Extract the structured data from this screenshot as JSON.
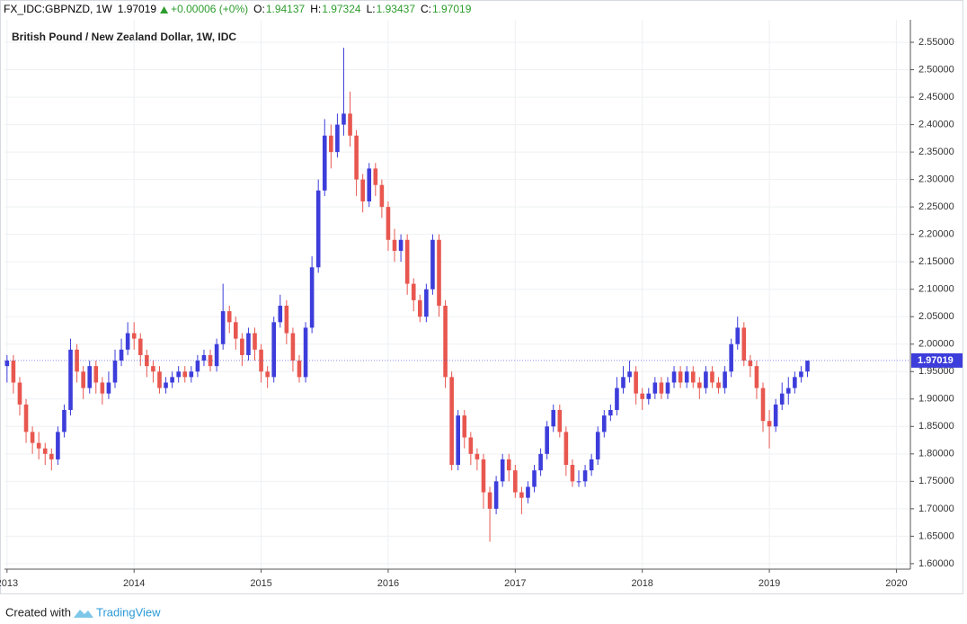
{
  "header": {
    "symbol": "FX_IDC:GBPNZD, 1W",
    "last": "1.97019",
    "change": "+0.00006 (+0%)",
    "ohlc": [
      {
        "label": "O:",
        "value": "1.94137"
      },
      {
        "label": "H:",
        "value": "1.97324"
      },
      {
        "label": "L:",
        "value": "1.93437"
      },
      {
        "label": "C:",
        "value": "1.97019"
      }
    ]
  },
  "footer": {
    "prefix": "Created with",
    "brand": "TradingView"
  },
  "chart_data": {
    "type": "candlestick",
    "title": "British Pound / New Zealand Dollar, 1W, IDC",
    "up_color": "#3d3ddb",
    "down_color": "#e8574f",
    "last_color": "#3d3ddb",
    "grid": true,
    "last_price": {
      "value": 1.97019,
      "label": "1.97019"
    },
    "xlim": [
      2012.98,
      2020.11
    ],
    "xticks": [
      2013,
      2014,
      2015,
      2016,
      2017,
      2018,
      2019,
      2020
    ],
    "ylim": [
      1.59,
      2.591
    ],
    "yticks": [
      {
        "value": 1.6,
        "label": "1.60000"
      },
      {
        "value": 1.65,
        "label": "1.65000"
      },
      {
        "value": 1.7,
        "label": "1.70000"
      },
      {
        "value": 1.75,
        "label": "1.75000"
      },
      {
        "value": 1.8,
        "label": "1.80000"
      },
      {
        "value": 1.85,
        "label": "1.85000"
      },
      {
        "value": 1.9,
        "label": "1.90000"
      },
      {
        "value": 1.95,
        "label": "1.95000"
      },
      {
        "value": 2.0,
        "label": "2.00000"
      },
      {
        "value": 2.05,
        "label": "2.05000"
      },
      {
        "value": 2.1,
        "label": "2.10000"
      },
      {
        "value": 2.15,
        "label": "2.15000"
      },
      {
        "value": 2.2,
        "label": "2.20000"
      },
      {
        "value": 2.25,
        "label": "2.25000"
      },
      {
        "value": 2.3,
        "label": "2.30000"
      },
      {
        "value": 2.35,
        "label": "2.35000"
      },
      {
        "value": 2.4,
        "label": "2.40000"
      },
      {
        "value": 2.45,
        "label": "2.45000"
      },
      {
        "value": 2.5,
        "label": "2.50000"
      },
      {
        "value": 2.55,
        "label": "2.55000"
      }
    ],
    "x": [
      2013.0,
      2013.05,
      2013.1,
      2013.15,
      2013.2,
      2013.25,
      2013.3,
      2013.35,
      2013.4,
      2013.45,
      2013.5,
      2013.55,
      2013.6,
      2013.65,
      2013.7,
      2013.75,
      2013.8,
      2013.85,
      2013.9,
      2013.95,
      2014.0,
      2014.05,
      2014.1,
      2014.15,
      2014.2,
      2014.25,
      2014.3,
      2014.35,
      2014.4,
      2014.45,
      2014.5,
      2014.55,
      2014.6,
      2014.65,
      2014.7,
      2014.75,
      2014.8,
      2014.85,
      2014.9,
      2014.95,
      2015.0,
      2015.05,
      2015.1,
      2015.15,
      2015.2,
      2015.25,
      2015.3,
      2015.35,
      2015.4,
      2015.45,
      2015.5,
      2015.55,
      2015.6,
      2015.65,
      2015.7,
      2015.75,
      2015.8,
      2015.85,
      2015.9,
      2015.95,
      2016.0,
      2016.05,
      2016.1,
      2016.15,
      2016.2,
      2016.25,
      2016.3,
      2016.35,
      2016.4,
      2016.45,
      2016.5,
      2016.55,
      2016.6,
      2016.65,
      2016.7,
      2016.75,
      2016.8,
      2016.85,
      2016.9,
      2016.95,
      2017.0,
      2017.05,
      2017.1,
      2017.15,
      2017.2,
      2017.25,
      2017.3,
      2017.35,
      2017.4,
      2017.45,
      2017.5,
      2017.55,
      2017.6,
      2017.65,
      2017.7,
      2017.75,
      2017.8,
      2017.85,
      2017.9,
      2017.95,
      2018.0,
      2018.05,
      2018.1,
      2018.15,
      2018.2,
      2018.25,
      2018.3,
      2018.35,
      2018.4,
      2018.45,
      2018.5,
      2018.55,
      2018.6,
      2018.65,
      2018.7,
      2018.75,
      2018.8,
      2018.85,
      2018.9,
      2018.95,
      2019.0,
      2019.05,
      2019.1,
      2019.15,
      2019.2,
      2019.25,
      2019.3
    ],
    "open": [
      1.96,
      1.97,
      1.93,
      1.89,
      1.84,
      1.82,
      1.81,
      1.8,
      1.79,
      1.84,
      1.88,
      1.99,
      1.95,
      1.92,
      1.96,
      1.93,
      1.91,
      1.93,
      1.97,
      1.99,
      2.02,
      2.01,
      1.98,
      1.96,
      1.95,
      1.92,
      1.93,
      1.94,
      1.95,
      1.94,
      1.95,
      1.97,
      1.98,
      1.96,
      2.0,
      2.06,
      2.04,
      2.01,
      1.98,
      2.02,
      1.99,
      1.95,
      1.94,
      2.04,
      2.07,
      2.02,
      1.97,
      1.94,
      2.03,
      2.14,
      2.28,
      2.38,
      2.35,
      2.4,
      2.42,
      2.38,
      2.3,
      2.26,
      2.32,
      2.29,
      2.25,
      2.19,
      2.17,
      2.19,
      2.11,
      2.08,
      2.05,
      2.1,
      2.19,
      2.07,
      1.94,
      1.78,
      1.87,
      1.83,
      1.8,
      1.79,
      1.73,
      1.7,
      1.75,
      1.79,
      1.77,
      1.73,
      1.72,
      1.74,
      1.77,
      1.8,
      1.85,
      1.88,
      1.84,
      1.78,
      1.75,
      1.75,
      1.77,
      1.79,
      1.84,
      1.87,
      1.88,
      1.92,
      1.94,
      1.95,
      1.91,
      1.9,
      1.91,
      1.93,
      1.91,
      1.93,
      1.95,
      1.93,
      1.95,
      1.93,
      1.92,
      1.95,
      1.93,
      1.92,
      1.95,
      2.0,
      2.03,
      1.97,
      1.96,
      1.92,
      1.86,
      1.85,
      1.89,
      1.91,
      1.92,
      1.94,
      1.95
    ],
    "high": [
      1.98,
      1.98,
      1.94,
      1.9,
      1.85,
      1.84,
      1.82,
      1.81,
      1.85,
      1.89,
      2.01,
      2.0,
      1.96,
      1.97,
      1.97,
      1.94,
      1.95,
      1.99,
      2.01,
      2.04,
      2.04,
      2.02,
      1.99,
      1.97,
      1.96,
      1.94,
      1.95,
      1.96,
      1.96,
      1.96,
      1.98,
      1.99,
      1.99,
      2.01,
      2.11,
      2.07,
      2.05,
      2.02,
      2.03,
      2.03,
      2.0,
      1.96,
      2.05,
      2.09,
      2.08,
      2.03,
      1.98,
      2.04,
      2.16,
      2.3,
      2.41,
      2.4,
      2.42,
      2.54,
      2.46,
      2.39,
      2.31,
      2.33,
      2.33,
      2.3,
      2.26,
      2.21,
      2.2,
      2.2,
      2.12,
      2.09,
      2.11,
      2.2,
      2.2,
      2.08,
      1.95,
      1.88,
      1.88,
      1.84,
      1.81,
      1.8,
      1.74,
      1.76,
      1.8,
      1.8,
      1.78,
      1.74,
      1.75,
      1.78,
      1.81,
      1.86,
      1.89,
      1.89,
      1.85,
      1.79,
      1.77,
      1.78,
      1.8,
      1.85,
      1.88,
      1.89,
      1.94,
      1.96,
      1.97,
      1.96,
      1.92,
      1.92,
      1.94,
      1.94,
      1.94,
      1.96,
      1.96,
      1.96,
      1.96,
      1.94,
      1.96,
      1.96,
      1.94,
      1.96,
      2.01,
      2.05,
      2.04,
      1.98,
      1.97,
      1.93,
      1.88,
      1.9,
      1.93,
      1.94,
      1.95,
      1.96,
      1.97
    ],
    "low": [
      1.93,
      1.91,
      1.87,
      1.82,
      1.8,
      1.79,
      1.78,
      1.77,
      1.78,
      1.83,
      1.87,
      1.93,
      1.9,
      1.91,
      1.91,
      1.89,
      1.9,
      1.92,
      1.96,
      1.98,
      1.99,
      1.96,
      1.94,
      1.93,
      1.91,
      1.91,
      1.92,
      1.93,
      1.93,
      1.93,
      1.94,
      1.96,
      1.95,
      1.95,
      1.99,
      2.02,
      1.99,
      1.96,
      1.97,
      1.97,
      1.93,
      1.92,
      1.93,
      2.03,
      2.0,
      1.95,
      1.93,
      1.93,
      2.02,
      2.13,
      2.27,
      2.32,
      2.34,
      2.38,
      2.36,
      2.27,
      2.24,
      2.25,
      2.27,
      2.23,
      2.17,
      2.15,
      2.15,
      2.09,
      2.06,
      2.04,
      2.04,
      2.09,
      2.05,
      1.92,
      1.77,
      1.77,
      1.81,
      1.78,
      1.77,
      1.7,
      1.64,
      1.69,
      1.74,
      1.75,
      1.72,
      1.69,
      1.71,
      1.73,
      1.76,
      1.79,
      1.84,
      1.83,
      1.76,
      1.74,
      1.74,
      1.74,
      1.76,
      1.78,
      1.83,
      1.86,
      1.87,
      1.91,
      1.93,
      1.89,
      1.88,
      1.89,
      1.9,
      1.9,
      1.9,
      1.92,
      1.92,
      1.92,
      1.92,
      1.9,
      1.91,
      1.92,
      1.91,
      1.91,
      1.94,
      1.99,
      1.96,
      1.94,
      1.9,
      1.84,
      1.81,
      1.84,
      1.88,
      1.89,
      1.91,
      1.93,
      1.94
    ],
    "close": [
      1.97,
      1.93,
      1.89,
      1.84,
      1.82,
      1.81,
      1.8,
      1.79,
      1.84,
      1.88,
      1.99,
      1.95,
      1.92,
      1.96,
      1.93,
      1.91,
      1.93,
      1.97,
      1.99,
      2.02,
      2.01,
      1.98,
      1.96,
      1.95,
      1.92,
      1.93,
      1.94,
      1.95,
      1.94,
      1.95,
      1.97,
      1.98,
      1.96,
      2.0,
      2.06,
      2.04,
      2.01,
      1.98,
      2.02,
      1.99,
      1.95,
      1.94,
      2.04,
      2.07,
      2.02,
      1.97,
      1.94,
      2.03,
      2.14,
      2.28,
      2.38,
      2.35,
      2.4,
      2.42,
      2.38,
      2.3,
      2.26,
      2.32,
      2.29,
      2.25,
      2.19,
      2.17,
      2.19,
      2.11,
      2.08,
      2.05,
      2.1,
      2.19,
      2.07,
      1.94,
      1.78,
      1.87,
      1.83,
      1.8,
      1.79,
      1.73,
      1.7,
      1.75,
      1.79,
      1.77,
      1.73,
      1.72,
      1.74,
      1.77,
      1.8,
      1.85,
      1.88,
      1.84,
      1.78,
      1.75,
      1.75,
      1.77,
      1.79,
      1.84,
      1.87,
      1.88,
      1.92,
      1.94,
      1.95,
      1.91,
      1.9,
      1.91,
      1.93,
      1.91,
      1.93,
      1.95,
      1.93,
      1.95,
      1.93,
      1.92,
      1.95,
      1.93,
      1.92,
      1.95,
      2.0,
      2.03,
      1.97,
      1.96,
      1.92,
      1.86,
      1.85,
      1.89,
      1.91,
      1.92,
      1.94,
      1.95,
      1.97
    ]
  }
}
